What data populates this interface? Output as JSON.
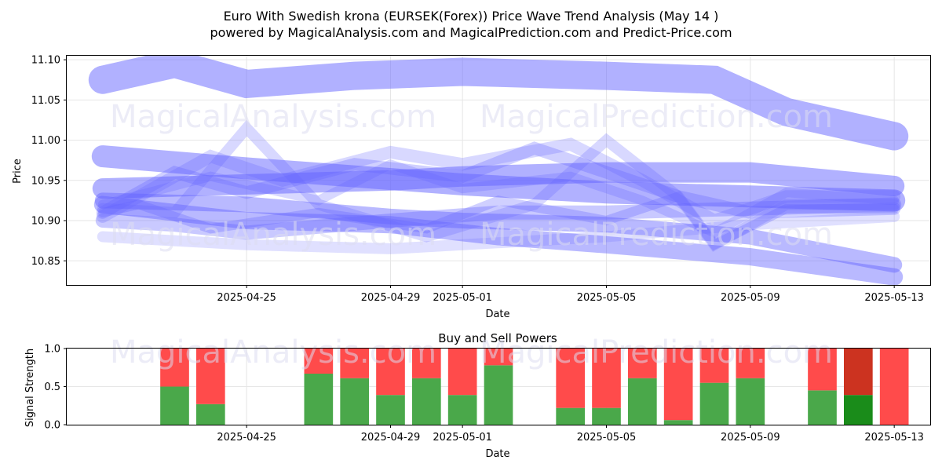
{
  "title_line1": "Euro With Swedish krona (EURSEK(Forex)) Price Wave Trend Analysis (May 14 )",
  "title_line2": "powered by MagicalAnalysis.com and MagicalPrediction.com and Predict-Price.com",
  "watermarks": [
    "MagicalAnalysis.com",
    "MagicalPrediction.com"
  ],
  "colors": {
    "wave": "#6464ff",
    "buy": "#4aa84a",
    "sell": "#ff4b4b",
    "buy_dark": "#1a8c1a",
    "sell_dark": "#cc3320"
  },
  "chart_data": [
    {
      "type": "line",
      "title": "",
      "xlabel": "Date",
      "ylabel": "Price",
      "ylim": [
        10.82,
        11.105
      ],
      "xlim": [
        "2025-04-20",
        "2025-05-14"
      ],
      "yticks": [
        "10.85",
        "10.90",
        "10.95",
        "11.00",
        "11.05",
        "11.10"
      ],
      "xticks": [
        "2025-04-25",
        "2025-04-29",
        "2025-05-01",
        "2025-05-05",
        "2025-05-09",
        "2025-05-13"
      ],
      "grid": true,
      "series": [
        {
          "width": 36,
          "opacity": 0.5,
          "points": [
            [
              "2025-04-21",
              11.075
            ],
            [
              "2025-04-23",
              11.095
            ],
            [
              "2025-04-25",
              11.07
            ],
            [
              "2025-04-28",
              11.08
            ],
            [
              "2025-05-01",
              11.085
            ],
            [
              "2025-05-05",
              11.08
            ],
            [
              "2025-05-08",
              11.075
            ],
            [
              "2025-05-10",
              11.035
            ],
            [
              "2025-05-13",
              11.005
            ]
          ]
        },
        {
          "width": 28,
          "opacity": 0.5,
          "points": [
            [
              "2025-04-21",
              10.98
            ],
            [
              "2025-04-25",
              10.965
            ],
            [
              "2025-04-28",
              10.955
            ],
            [
              "2025-05-01",
              10.945
            ],
            [
              "2025-05-05",
              10.935
            ],
            [
              "2025-05-09",
              10.93
            ],
            [
              "2025-05-13",
              10.925
            ]
          ]
        },
        {
          "width": 26,
          "opacity": 0.5,
          "points": [
            [
              "2025-04-21",
              10.94
            ],
            [
              "2025-04-25",
              10.945
            ],
            [
              "2025-04-29",
              10.95
            ],
            [
              "2025-05-01",
              10.955
            ],
            [
              "2025-05-05",
              10.96
            ],
            [
              "2025-05-09",
              10.96
            ],
            [
              "2025-05-13",
              10.943
            ]
          ]
        },
        {
          "width": 22,
          "opacity": 0.45,
          "points": [
            [
              "2025-04-21",
              10.92
            ],
            [
              "2025-04-25",
              10.9
            ],
            [
              "2025-04-29",
              10.895
            ],
            [
              "2025-05-02",
              10.88
            ],
            [
              "2025-05-05",
              10.87
            ],
            [
              "2025-05-09",
              10.855
            ],
            [
              "2025-05-13",
              10.83
            ]
          ]
        },
        {
          "width": 20,
          "opacity": 0.45,
          "points": [
            [
              "2025-04-21",
              10.925
            ],
            [
              "2025-04-25",
              10.92
            ],
            [
              "2025-04-29",
              10.905
            ],
            [
              "2025-05-01",
              10.9
            ],
            [
              "2025-05-05",
              10.895
            ],
            [
              "2025-05-09",
              10.88
            ],
            [
              "2025-05-13",
              10.845
            ]
          ]
        },
        {
          "width": 18,
          "opacity": 0.35,
          "points": [
            [
              "2025-04-21",
              10.9
            ],
            [
              "2025-04-23",
              10.895
            ],
            [
              "2025-04-25",
              10.885
            ],
            [
              "2025-04-29",
              10.9
            ],
            [
              "2025-05-02",
              10.91
            ],
            [
              "2025-05-05",
              10.91
            ],
            [
              "2025-05-09",
              10.915
            ],
            [
              "2025-05-13",
              10.92
            ]
          ]
        },
        {
          "width": 16,
          "opacity": 0.3,
          "points": [
            [
              "2025-04-21",
              10.91
            ],
            [
              "2025-04-23",
              10.96
            ],
            [
              "2025-04-25",
              10.935
            ],
            [
              "2025-04-28",
              10.97
            ],
            [
              "2025-05-01",
              10.955
            ],
            [
              "2025-05-03",
              10.99
            ],
            [
              "2025-05-05",
              10.96
            ],
            [
              "2025-05-07",
              10.93
            ],
            [
              "2025-05-09",
              10.91
            ],
            [
              "2025-05-13",
              10.915
            ]
          ]
        },
        {
          "width": 16,
          "opacity": 0.25,
          "points": [
            [
              "2025-04-21",
              10.905
            ],
            [
              "2025-04-24",
              10.98
            ],
            [
              "2025-04-26",
              10.95
            ],
            [
              "2025-04-29",
              10.985
            ],
            [
              "2025-05-01",
              10.97
            ],
            [
              "2025-05-04",
              10.995
            ],
            [
              "2025-05-06",
              10.95
            ],
            [
              "2025-05-08",
              10.9
            ],
            [
              "2025-05-10",
              10.93
            ],
            [
              "2025-05-13",
              10.93
            ]
          ]
        },
        {
          "width": 14,
          "opacity": 0.25,
          "points": [
            [
              "2025-04-21",
              10.915
            ],
            [
              "2025-04-23",
              10.91
            ],
            [
              "2025-04-25",
              11.015
            ],
            [
              "2025-04-27",
              10.92
            ],
            [
              "2025-04-30",
              10.88
            ],
            [
              "2025-05-03",
              10.92
            ],
            [
              "2025-05-05",
              11.0
            ],
            [
              "2025-05-07",
              10.93
            ],
            [
              "2025-05-08",
              10.87
            ],
            [
              "2025-05-10",
              10.92
            ],
            [
              "2025-05-13",
              10.92
            ]
          ]
        },
        {
          "width": 14,
          "opacity": 0.2,
          "points": [
            [
              "2025-04-21",
              10.88
            ],
            [
              "2025-04-25",
              10.87
            ],
            [
              "2025-04-29",
              10.865
            ],
            [
              "2025-05-01",
              10.87
            ],
            [
              "2025-05-05",
              10.88
            ],
            [
              "2025-05-09",
              10.895
            ],
            [
              "2025-05-13",
              10.905
            ]
          ]
        },
        {
          "width": 12,
          "opacity": 0.3,
          "points": [
            [
              "2025-04-21",
              10.91
            ],
            [
              "2025-04-22",
              10.92
            ],
            [
              "2025-04-24",
              10.89
            ],
            [
              "2025-04-27",
              10.91
            ],
            [
              "2025-04-30",
              10.89
            ],
            [
              "2025-05-02",
              10.925
            ],
            [
              "2025-05-05",
              10.9
            ],
            [
              "2025-05-07",
              10.93
            ],
            [
              "2025-05-08",
              10.87
            ],
            [
              "2025-05-10",
              10.915
            ],
            [
              "2025-05-13",
              10.915
            ]
          ]
        },
        {
          "width": 12,
          "opacity": 0.25,
          "points": [
            [
              "2025-04-21",
              10.92
            ],
            [
              "2025-04-24",
              10.955
            ],
            [
              "2025-04-27",
              10.925
            ],
            [
              "2025-04-29",
              10.97
            ],
            [
              "2025-05-01",
              10.94
            ],
            [
              "2025-05-04",
              10.955
            ],
            [
              "2025-05-06",
              10.925
            ],
            [
              "2025-05-08",
              10.885
            ],
            [
              "2025-05-10",
              10.935
            ],
            [
              "2025-05-13",
              10.925
            ]
          ]
        }
      ]
    },
    {
      "type": "bar",
      "title": "Buy and Sell Powers",
      "xlabel": "Date",
      "ylabel": "Signal Strength",
      "ylim": [
        0,
        1
      ],
      "yticks": [
        "0.0",
        "0.5",
        "1.0"
      ],
      "xticks": [
        "2025-04-25",
        "2025-04-29",
        "2025-05-01",
        "2025-05-05",
        "2025-05-09",
        "2025-05-13"
      ],
      "xlim": [
        "2025-04-20",
        "2025-05-14"
      ],
      "grid": true,
      "categories": [
        "2025-04-23",
        "2025-04-24",
        "2025-04-27",
        "2025-04-28",
        "2025-04-29",
        "2025-04-30",
        "2025-05-01",
        "2025-05-02",
        "2025-05-04",
        "2025-05-05",
        "2025-05-06",
        "2025-05-07",
        "2025-05-08",
        "2025-05-09",
        "2025-05-11",
        "2025-05-12",
        "2025-05-13"
      ],
      "series": [
        {
          "values": [
            0.5,
            0.27,
            0.67,
            0.61,
            0.39,
            0.61,
            0.39,
            0.78,
            0.22,
            0.22,
            0.61,
            0.06,
            0.55,
            0.61,
            0.45,
            0.39,
            0.0
          ]
        },
        {
          "values": [
            0.5,
            0.73,
            0.33,
            0.39,
            0.61,
            0.39,
            0.61,
            0.22,
            0.78,
            0.78,
            0.39,
            0.94,
            0.45,
            0.39,
            0.55,
            0.61,
            1.0
          ]
        }
      ],
      "highlight_index": 15
    }
  ]
}
